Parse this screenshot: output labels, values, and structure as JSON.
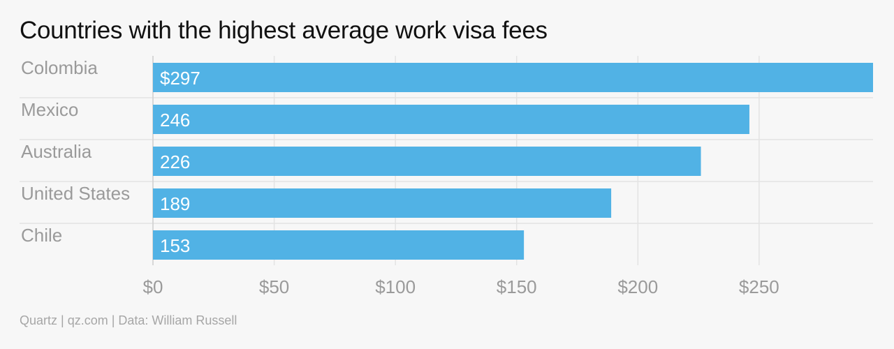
{
  "chart_data": {
    "type": "bar",
    "orientation": "horizontal",
    "title": "Countries with the highest average work visa fees",
    "categories": [
      "Colombia",
      "Mexico",
      "Australia",
      "United States",
      "Chile"
    ],
    "values": [
      297,
      246,
      226,
      189,
      153
    ],
    "data_labels": [
      "$297",
      "246",
      "226",
      "189",
      "153"
    ],
    "xlim": [
      0,
      297
    ],
    "xticks": [
      0,
      50,
      100,
      150,
      200,
      250
    ],
    "xtick_labels": [
      "$0",
      "$50",
      "$100",
      "$150",
      "$200",
      "$250"
    ],
    "xlabel": "",
    "ylabel": "",
    "grid": true,
    "bar_color": "#51b2e5",
    "grid_color": "#e3e3e3"
  },
  "source": "Quartz | qz.com | Data: William Russell"
}
